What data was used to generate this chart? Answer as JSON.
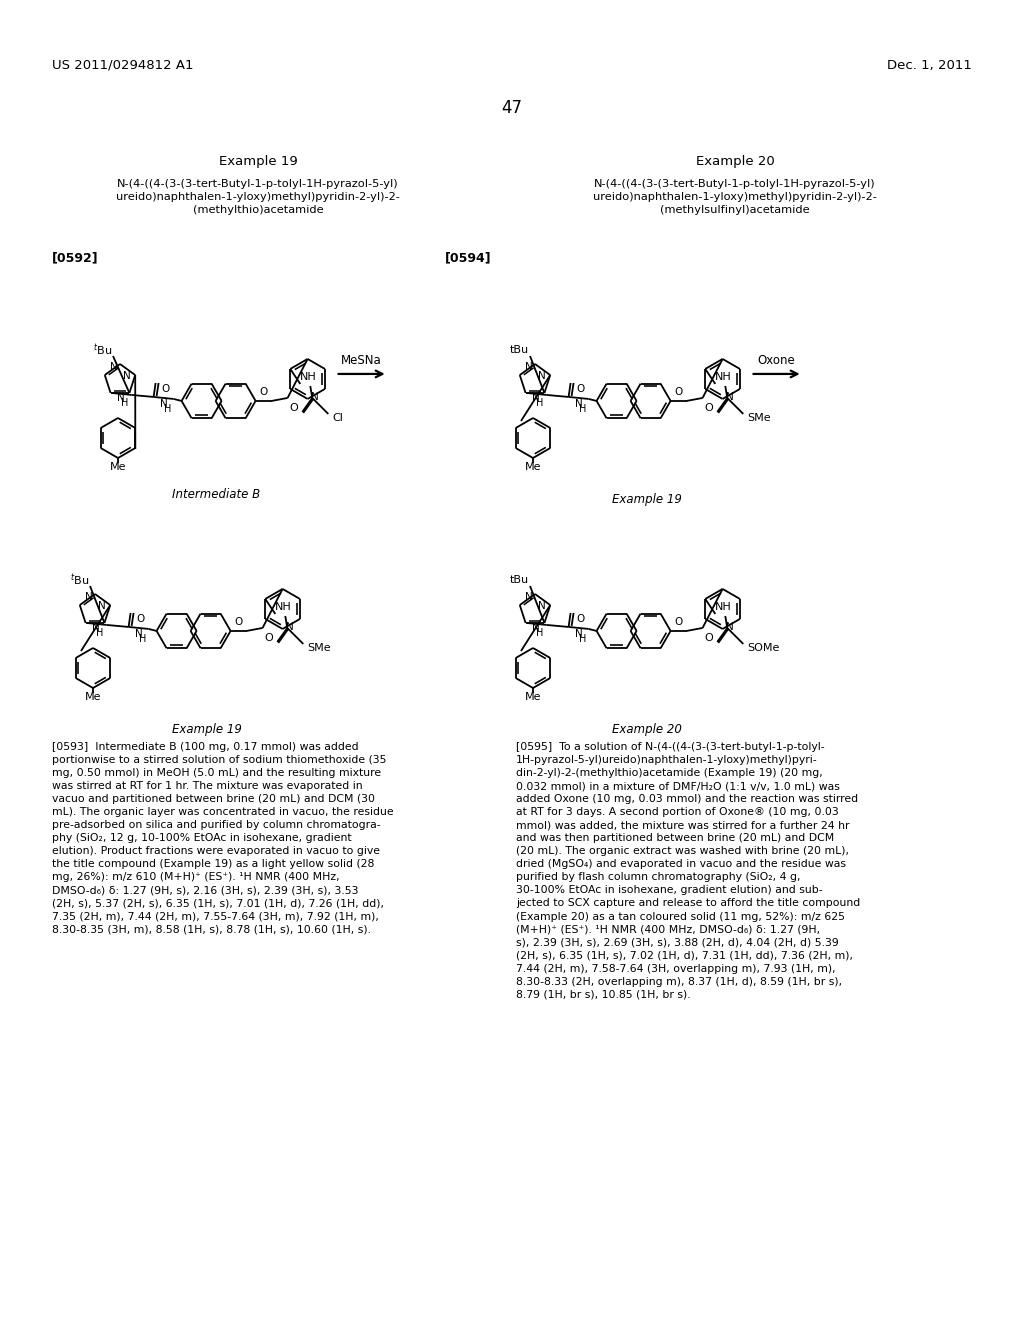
{
  "page_header_left": "US 2011/0294812 A1",
  "page_header_right": "Dec. 1, 2011",
  "page_number": "47",
  "example19_title": "Example 19",
  "example20_title": "Example 20",
  "example19_line1": "N-(4-((4-(3-(3-tert-Butyl-1-p-tolyl-1H-pyrazol-5-yl)",
  "example19_line2": "ureido)naphthalen-1-yloxy)methyl)pyridin-2-yl)-2-",
  "example19_line3": "(methylthio)acetamide",
  "example20_line1": "N-(4-((4-(3-(3-tert-Butyl-1-p-tolyl-1H-pyrazol-5-yl)",
  "example20_line2": "ureido)naphthalen-1-yloxy)methyl)pyridin-2-yl)-2-",
  "example20_line3": "(methylsulfinyl)acetamide",
  "ref0592": "[0592]",
  "ref0594": "[0594]",
  "reagent1": "MeSNa",
  "reagent2": "Oxone",
  "label_intB": "Intermediate B",
  "label_ex19_top": "Example 19",
  "label_ex19_bot": "Example 19",
  "label_ex20_bot": "Example 20",
  "text0593": "[0593]  Intermediate B (100 mg, 0.17 mmol) was added\nportionwise to a stirred solution of sodium thiomethoxide (35\nmg, 0.50 mmol) in MeOH (5.0 mL) and the resulting mixture\nwas stirred at RT for 1 hr. The mixture was evaporated in\nvacuo and partitioned between brine (20 mL) and DCM (30\nmL). The organic layer was concentrated in vacuo, the residue\npre-adsorbed on silica and purified by column chromatogra-\nphy (SiO₂, 12 g, 10-100% EtOAc in isohexane, gradient\nelution). Product fractions were evaporated in vacuo to give\nthe title compound (Example 19) as a light yellow solid (28\nmg, 26%): m/z 610 (M+H)⁺ (ES⁺). ¹H NMR (400 MHz,\nDMSO-d₆) δ: 1.27 (9H, s), 2.16 (3H, s), 2.39 (3H, s), 3.53\n(2H, s), 5.37 (2H, s), 6.35 (1H, s), 7.01 (1H, d), 7.26 (1H, dd),\n7.35 (2H, m), 7.44 (2H, m), 7.55-7.64 (3H, m), 7.92 (1H, m),\n8.30-8.35 (3H, m), 8.58 (1H, s), 8.78 (1H, s), 10.60 (1H, s).",
  "text0595": "[0595]  To a solution of N-(4-((4-(3-(3-tert-butyl-1-p-tolyl-\n1H-pyrazol-5-yl)ureido)naphthalen-1-yloxy)methyl)pyri-\ndin-2-yl)-2-(methylthio)acetamide (Example 19) (20 mg,\n0.032 mmol) in a mixture of DMF/H₂O (1:1 v/v, 1.0 mL) was\nadded Oxone (10 mg, 0.03 mmol) and the reaction was stirred\nat RT for 3 days. A second portion of Oxone® (10 mg, 0.03\nmmol) was added, the mixture was stirred for a further 24 hr\nand was then partitioned between brine (20 mL) and DCM\n(20 mL). The organic extract was washed with brine (20 mL),\ndried (MgSO₄) and evaporated in vacuo and the residue was\npurified by flash column chromatography (SiO₂, 4 g,\n30-100% EtOAc in isohexane, gradient elution) and sub-\njected to SCX capture and release to afford the title compound\n(Example 20) as a tan coloured solid (11 mg, 52%): m/z 625\n(M+H)⁺ (ES⁺). ¹H NMR (400 MHz, DMSO-d₆) δ: 1.27 (9H,\ns), 2.39 (3H, s), 2.69 (3H, s), 3.88 (2H, d), 4.04 (2H, d) 5.39\n(2H, s), 6.35 (1H, s), 7.02 (1H, d), 7.31 (1H, dd), 7.36 (2H, m),\n7.44 (2H, m), 7.58-7.64 (3H, overlapping m), 7.93 (1H, m),\n8.30-8.33 (2H, overlapping m), 8.37 (1H, d), 8.59 (1H, br s),\n8.79 (1H, br s), 10.85 (1H, br s).",
  "bg_color": "#ffffff",
  "text_color": "#000000"
}
